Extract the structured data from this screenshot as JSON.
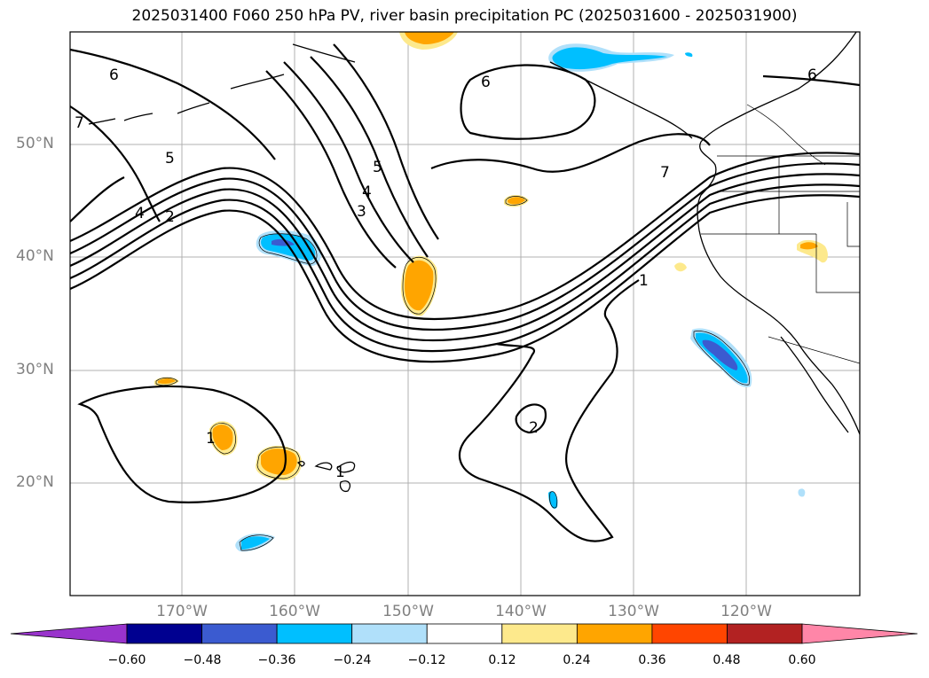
{
  "title": "2025031400 F060 250 hPa PV, river basin precipitation PC (2025031600 - 2025031900)",
  "map": {
    "lat_labels": [
      "50°N",
      "40°N",
      "30°N",
      "20°N"
    ],
    "lon_labels": [
      "170°W",
      "160°W",
      "150°W",
      "140°W",
      "130°W",
      "120°W"
    ],
    "contour_labels": [
      "6",
      "7",
      "5",
      "4",
      "2",
      "6",
      "5",
      "4",
      "3",
      "7",
      "1",
      "6",
      "2",
      "1",
      "1"
    ]
  },
  "colorbar": {
    "labels": [
      "−0.60",
      "−0.48",
      "−0.36",
      "−0.24",
      "−0.12",
      "0.12",
      "0.24",
      "0.36",
      "0.48",
      "0.60"
    ],
    "colors": [
      "#9933cc",
      "#000090",
      "#3b5bd0",
      "#00bfff",
      "#b0e0fa",
      "#ffffff",
      "#fde98c",
      "#ffa500",
      "#ff4500",
      "#b22222",
      "#ff86a8"
    ]
  },
  "colors": {
    "negative_shading": [
      "#00bfff",
      "#b0e0fa",
      "#3b5bd0"
    ],
    "positive_shading": [
      "#ffa500",
      "#fde98c"
    ]
  }
}
